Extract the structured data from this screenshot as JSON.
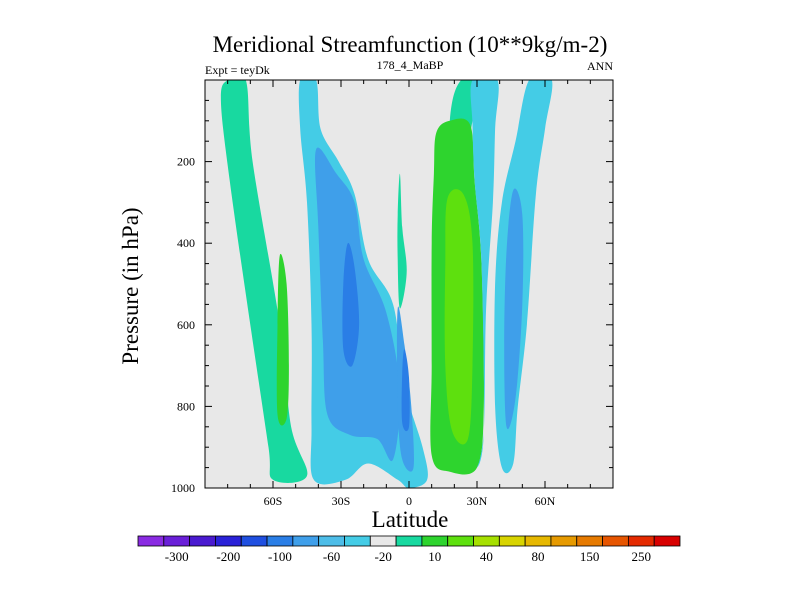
{
  "chart_data": {
    "type": "contour",
    "title": "Meridional Streamfunction (10**9kg/m-2)",
    "left_label": "Expt = teyDk",
    "center_label": "178_4_MaBP",
    "right_label": "ANN",
    "xlabel": "Latitude",
    "ylabel": "Pressure (in hPa)",
    "x_range": [
      -90,
      90
    ],
    "y_range": [
      0,
      1000
    ],
    "y_inverted": true,
    "x_ticks": [
      {
        "value": -60,
        "label": "60S"
      },
      {
        "value": -30,
        "label": "30S"
      },
      {
        "value": 0,
        "label": "0"
      },
      {
        "value": 30,
        "label": "30N"
      },
      {
        "value": 60,
        "label": "60N"
      }
    ],
    "y_ticks": [
      {
        "value": 200,
        "label": "200"
      },
      {
        "value": 400,
        "label": "400"
      },
      {
        "value": 600,
        "label": "600"
      },
      {
        "value": 800,
        "label": "800"
      },
      {
        "value": 1000,
        "label": "1000"
      }
    ],
    "background_color": "#e8e8e8",
    "colorbar": {
      "colors": [
        "#8a2be2",
        "#6a1fd8",
        "#4a1ad0",
        "#2a22d8",
        "#1f4fe0",
        "#2a7ee6",
        "#3f9fea",
        "#4dbde8",
        "#44cce6",
        "#e8e8e8",
        "#18d9a0",
        "#2ed42e",
        "#5ee00e",
        "#a6e000",
        "#d8d400",
        "#e6b800",
        "#e69a00",
        "#e67a00",
        "#e65500",
        "#e42a00",
        "#d80000"
      ],
      "labels": [
        "-300",
        "-200",
        "-100",
        "-60",
        "-20",
        "10",
        "40",
        "80",
        "150",
        "250"
      ]
    },
    "regions": [
      {
        "name": "sh-ferrel-cell",
        "value": 10,
        "color": "#18d9a0",
        "polygon": [
          [
            -80,
            0
          ],
          [
            -72,
            0
          ],
          [
            -69,
            200
          ],
          [
            -57,
            600
          ],
          [
            -52,
            850
          ],
          [
            -45,
            970
          ],
          [
            -60,
            980
          ],
          [
            -62,
            900
          ],
          [
            -70,
            600
          ],
          [
            -79,
            250
          ],
          [
            -83,
            50
          ]
        ]
      },
      {
        "name": "sh-ferrel-core",
        "value": 40,
        "color": "#2ed42e",
        "polygon": [
          [
            -57,
            430
          ],
          [
            -54,
            500
          ],
          [
            -53,
            700
          ],
          [
            -54,
            830
          ],
          [
            -58,
            820
          ],
          [
            -58,
            600
          ]
        ]
      },
      {
        "name": "sh-hadley-cell",
        "value": -20,
        "color": "#44cce6",
        "polygon": [
          [
            -48,
            0
          ],
          [
            -41,
            0
          ],
          [
            -39,
            120
          ],
          [
            -31,
            200
          ],
          [
            -24,
            280
          ],
          [
            -18,
            440
          ],
          [
            -7,
            550
          ],
          [
            -2,
            750
          ],
          [
            6,
            900
          ],
          [
            8,
            980
          ],
          [
            0,
            1000
          ],
          [
            -5,
            980
          ],
          [
            -18,
            940
          ],
          [
            -28,
            980
          ],
          [
            -42,
            980
          ],
          [
            -43,
            850
          ],
          [
            -43,
            600
          ],
          [
            -45,
            300
          ],
          [
            -48,
            120
          ]
        ]
      },
      {
        "name": "sh-hadley-mid",
        "value": -60,
        "color": "#3f9fea",
        "polygon": [
          [
            -41,
            170
          ],
          [
            -32,
            230
          ],
          [
            -24,
            300
          ],
          [
            -20,
            440
          ],
          [
            -10,
            570
          ],
          [
            -4,
            760
          ],
          [
            -7,
            930
          ],
          [
            -14,
            880
          ],
          [
            -26,
            870
          ],
          [
            -36,
            820
          ],
          [
            -38,
            640
          ],
          [
            -40,
            360
          ]
        ]
      },
      {
        "name": "sh-hadley-inner",
        "value": -100,
        "color": "#2a7ee6",
        "polygon": [
          [
            -27,
            400
          ],
          [
            -24,
            460
          ],
          [
            -22,
            600
          ],
          [
            -25,
            700
          ],
          [
            -29,
            660
          ],
          [
            -29,
            500
          ]
        ]
      },
      {
        "name": "eq-blue-strip",
        "value": -60,
        "color": "#3f9fea",
        "polygon": [
          [
            -5,
            560
          ],
          [
            -2,
            650
          ],
          [
            1,
            800
          ],
          [
            2,
            950
          ],
          [
            -3,
            930
          ],
          [
            -5,
            800
          ]
        ]
      },
      {
        "name": "eq-core",
        "value": -100,
        "color": "#2a7ee6",
        "polygon": [
          [
            -2,
            660
          ],
          [
            0,
            730
          ],
          [
            0,
            850
          ],
          [
            -3,
            840
          ],
          [
            -3,
            720
          ]
        ]
      },
      {
        "name": "eq-green-spike",
        "value": 10,
        "color": "#18d9a0",
        "polygon": [
          [
            -4,
            230
          ],
          [
            -3,
            360
          ],
          [
            -1,
            470
          ],
          [
            -4,
            560
          ],
          [
            -5,
            440
          ],
          [
            -5,
            330
          ]
        ]
      },
      {
        "name": "nh-ferrel-outer",
        "value": 10,
        "color": "#18d9a0",
        "polygon": [
          [
            18,
            100
          ],
          [
            23,
            0
          ],
          [
            33,
            0
          ],
          [
            28,
            100
          ],
          [
            24,
            250
          ],
          [
            18,
            350
          ]
        ]
      },
      {
        "name": "nh-hadley-cell",
        "value": 40,
        "color": "#2ed42e",
        "polygon": [
          [
            12,
            130
          ],
          [
            18,
            100
          ],
          [
            27,
            110
          ],
          [
            29,
            250
          ],
          [
            32,
            450
          ],
          [
            33,
            800
          ],
          [
            30,
            950
          ],
          [
            18,
            960
          ],
          [
            10,
            920
          ],
          [
            10,
            700
          ],
          [
            10,
            400
          ],
          [
            11,
            230
          ]
        ]
      },
      {
        "name": "nh-hadley-core",
        "value": 80,
        "color": "#5ee00e",
        "polygon": [
          [
            17,
            290
          ],
          [
            24,
            280
          ],
          [
            28,
            400
          ],
          [
            28,
            700
          ],
          [
            26,
            880
          ],
          [
            19,
            860
          ],
          [
            16,
            700
          ],
          [
            16,
            450
          ]
        ]
      },
      {
        "name": "nh-tropic-band",
        "value": -20,
        "color": "#44cce6",
        "polygon": [
          [
            28,
            0
          ],
          [
            39,
            0
          ],
          [
            38,
            120
          ],
          [
            37,
            300
          ],
          [
            34,
            560
          ],
          [
            33,
            860
          ],
          [
            30,
            950
          ],
          [
            33,
            860
          ],
          [
            32,
            450
          ],
          [
            29,
            250
          ],
          [
            28,
            110
          ]
        ]
      },
      {
        "name": "nh-polar-cell",
        "value": -20,
        "color": "#44cce6",
        "polygon": [
          [
            53,
            0
          ],
          [
            63,
            0
          ],
          [
            60,
            120
          ],
          [
            56,
            280
          ],
          [
            52,
            600
          ],
          [
            48,
            800
          ],
          [
            46,
            940
          ],
          [
            41,
            950
          ],
          [
            38,
            800
          ],
          [
            38,
            500
          ],
          [
            41,
            300
          ],
          [
            47,
            150
          ]
        ]
      },
      {
        "name": "nh-polar-core",
        "value": -60,
        "color": "#3f9fea",
        "polygon": [
          [
            46,
            270
          ],
          [
            50,
            330
          ],
          [
            50,
            550
          ],
          [
            47,
            780
          ],
          [
            43,
            850
          ],
          [
            42,
            650
          ],
          [
            43,
            420
          ]
        ]
      }
    ]
  }
}
